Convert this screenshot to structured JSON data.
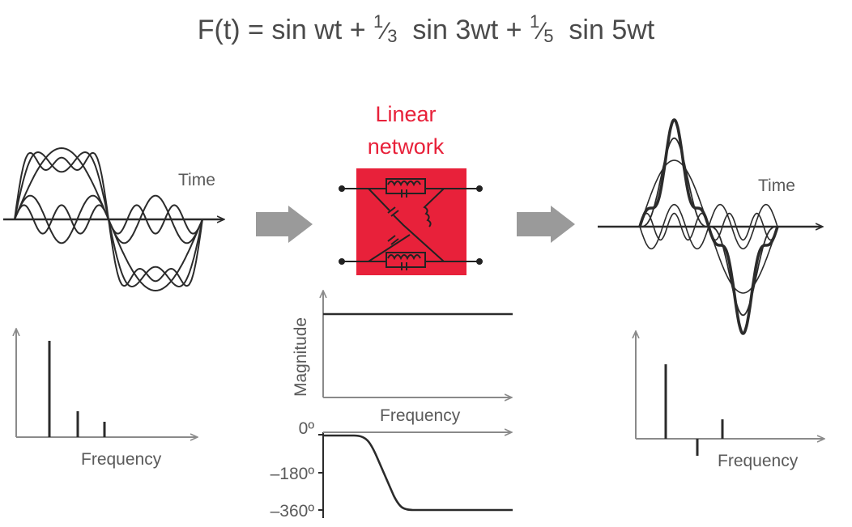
{
  "formula": {
    "lhs": "F(t) = sin wt + ",
    "frac1_num": "1",
    "frac1_den": "3",
    "mid": "sin 3wt + ",
    "frac2_num": "1",
    "frac2_den": "5",
    "tail": "sin 5wt"
  },
  "input_panel": {
    "time_label": "Time",
    "frequency_label": "Frequency"
  },
  "network": {
    "title_line1": "Linear",
    "title_line2": "network",
    "color": "#e8213a"
  },
  "magnitude_plot": {
    "ylabel": "Magnitude",
    "xlabel": "Frequency"
  },
  "phase_plot": {
    "ticks": [
      "0º",
      "–180º",
      "–360º"
    ]
  },
  "output_panel": {
    "time_label": "Time",
    "frequency_label": "Frequency"
  },
  "colors": {
    "line": "#2b2b2b",
    "arrow": "#9a9a9a",
    "text": "#5a5a5a"
  }
}
